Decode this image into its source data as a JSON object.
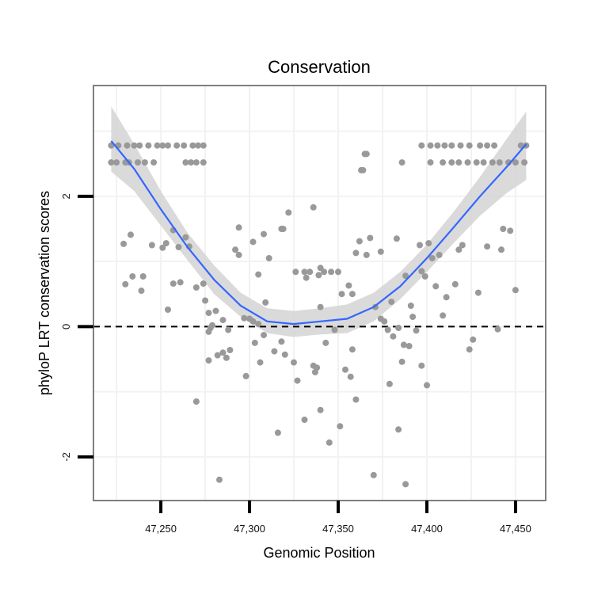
{
  "chart_data": {
    "type": "scatter",
    "title": "Conservation",
    "xlabel": "Genomic Position",
    "ylabel": "phyloP LRT conservation scores",
    "xlim": [
      47212,
      47467
    ],
    "ylim": [
      -2.67,
      3.7
    ],
    "x_ticks": [
      47250,
      47300,
      47350,
      47400,
      47450
    ],
    "x_tick_labels": [
      "47,250",
      "47,300",
      "47,350",
      "47,400",
      "47,450"
    ],
    "y_ticks": [
      -2,
      0,
      2
    ],
    "y_tick_labels": [
      "-2",
      "0",
      "2"
    ],
    "grid": true,
    "reference_line": {
      "y": 0,
      "style": "dashed"
    },
    "colors": {
      "points": "#999999",
      "smooth": "#3366ff",
      "band": "#d3d3d3",
      "frame": "#7f7f7f",
      "grid": "#f2f2f2"
    },
    "points": [
      {
        "x": 47222,
        "y": 2.78
      },
      {
        "x": 47226,
        "y": 2.78
      },
      {
        "x": 47231,
        "y": 2.78
      },
      {
        "x": 47235,
        "y": 2.78
      },
      {
        "x": 47238,
        "y": 2.78
      },
      {
        "x": 47243,
        "y": 2.78
      },
      {
        "x": 47248,
        "y": 2.78
      },
      {
        "x": 47251,
        "y": 2.78
      },
      {
        "x": 47254,
        "y": 2.78
      },
      {
        "x": 47259,
        "y": 2.78
      },
      {
        "x": 47263,
        "y": 2.78
      },
      {
        "x": 47268,
        "y": 2.78
      },
      {
        "x": 47271,
        "y": 2.78
      },
      {
        "x": 47274,
        "y": 2.78
      },
      {
        "x": 47222,
        "y": 2.52
      },
      {
        "x": 47225,
        "y": 2.52
      },
      {
        "x": 47230,
        "y": 2.52
      },
      {
        "x": 47232,
        "y": 2.52
      },
      {
        "x": 47237,
        "y": 2.52
      },
      {
        "x": 47241,
        "y": 2.52
      },
      {
        "x": 47246,
        "y": 2.52
      },
      {
        "x": 47264,
        "y": 2.52
      },
      {
        "x": 47267,
        "y": 2.52
      },
      {
        "x": 47270,
        "y": 2.52
      },
      {
        "x": 47274,
        "y": 2.52
      },
      {
        "x": 47397,
        "y": 2.78
      },
      {
        "x": 47402,
        "y": 2.78
      },
      {
        "x": 47406,
        "y": 2.78
      },
      {
        "x": 47410,
        "y": 2.78
      },
      {
        "x": 47414,
        "y": 2.78
      },
      {
        "x": 47419,
        "y": 2.78
      },
      {
        "x": 47424,
        "y": 2.78
      },
      {
        "x": 47430,
        "y": 2.78
      },
      {
        "x": 47434,
        "y": 2.78
      },
      {
        "x": 47438,
        "y": 2.78
      },
      {
        "x": 47453,
        "y": 2.78
      },
      {
        "x": 47456,
        "y": 2.78
      },
      {
        "x": 47386,
        "y": 2.52
      },
      {
        "x": 47402,
        "y": 2.52
      },
      {
        "x": 47409,
        "y": 2.52
      },
      {
        "x": 47414,
        "y": 2.52
      },
      {
        "x": 47418,
        "y": 2.52
      },
      {
        "x": 47423,
        "y": 2.52
      },
      {
        "x": 47428,
        "y": 2.52
      },
      {
        "x": 47432,
        "y": 2.52
      },
      {
        "x": 47437,
        "y": 2.52
      },
      {
        "x": 47441,
        "y": 2.52
      },
      {
        "x": 47446,
        "y": 2.52
      },
      {
        "x": 47450,
        "y": 2.52
      },
      {
        "x": 47455,
        "y": 2.52
      },
      {
        "x": 47365,
        "y": 2.65
      },
      {
        "x": 47366,
        "y": 2.65
      },
      {
        "x": 47363,
        "y": 2.4
      },
      {
        "x": 47364,
        "y": 2.4
      },
      {
        "x": 47336,
        "y": 1.83
      },
      {
        "x": 47322,
        "y": 1.75
      },
      {
        "x": 47318,
        "y": 1.5
      },
      {
        "x": 47319,
        "y": 1.5
      },
      {
        "x": 47294,
        "y": 1.52
      },
      {
        "x": 47308,
        "y": 1.42
      },
      {
        "x": 47302,
        "y": 1.3
      },
      {
        "x": 47292,
        "y": 1.18
      },
      {
        "x": 47294,
        "y": 1.1
      },
      {
        "x": 47311,
        "y": 1.05
      },
      {
        "x": 47305,
        "y": 0.8
      },
      {
        "x": 47229,
        "y": 1.27
      },
      {
        "x": 47233,
        "y": 1.41
      },
      {
        "x": 47245,
        "y": 1.25
      },
      {
        "x": 47251,
        "y": 1.21
      },
      {
        "x": 47253,
        "y": 1.28
      },
      {
        "x": 47257,
        "y": 1.48
      },
      {
        "x": 47260,
        "y": 1.22
      },
      {
        "x": 47264,
        "y": 1.37
      },
      {
        "x": 47266,
        "y": 1.23
      },
      {
        "x": 47230,
        "y": 0.65
      },
      {
        "x": 47234,
        "y": 0.77
      },
      {
        "x": 47240,
        "y": 0.77
      },
      {
        "x": 47239,
        "y": 0.55
      },
      {
        "x": 47257,
        "y": 0.66
      },
      {
        "x": 47261,
        "y": 0.68
      },
      {
        "x": 47270,
        "y": 0.6
      },
      {
        "x": 47274,
        "y": 0.66
      },
      {
        "x": 47254,
        "y": 0.26
      },
      {
        "x": 47275,
        "y": 0.4
      },
      {
        "x": 47270,
        "y": -1.15
      },
      {
        "x": 47277,
        "y": 0.21
      },
      {
        "x": 47281,
        "y": 0.24
      },
      {
        "x": 47278,
        "y": -0.02
      },
      {
        "x": 47279,
        "y": 0.02
      },
      {
        "x": 47277,
        "y": -0.08
      },
      {
        "x": 47285,
        "y": 0.1
      },
      {
        "x": 47288,
        "y": -0.05
      },
      {
        "x": 47289,
        "y": -0.36
      },
      {
        "x": 47282,
        "y": -0.44
      },
      {
        "x": 47277,
        "y": -0.52
      },
      {
        "x": 47287,
        "y": -0.48
      },
      {
        "x": 47285,
        "y": -0.4
      },
      {
        "x": 47297,
        "y": 0.13
      },
      {
        "x": 47300,
        "y": 0.12
      },
      {
        "x": 47302,
        "y": 0.08
      },
      {
        "x": 47305,
        "y": 0.04
      },
      {
        "x": 47303,
        "y": -0.25
      },
      {
        "x": 47308,
        "y": -0.13
      },
      {
        "x": 47309,
        "y": 0.37
      },
      {
        "x": 47314,
        "y": -0.38
      },
      {
        "x": 47306,
        "y": -0.55
      },
      {
        "x": 47318,
        "y": -0.23
      },
      {
        "x": 47320,
        "y": -0.43
      },
      {
        "x": 47325,
        "y": -0.55
      },
      {
        "x": 47327,
        "y": -0.83
      },
      {
        "x": 47298,
        "y": -0.76
      },
      {
        "x": 47316,
        "y": -1.63
      },
      {
        "x": 47283,
        "y": -2.35
      },
      {
        "x": 47326,
        "y": 0.84
      },
      {
        "x": 47331,
        "y": 0.84
      },
      {
        "x": 47334,
        "y": 0.84
      },
      {
        "x": 47340,
        "y": 0.9
      },
      {
        "x": 47346,
        "y": 0.84
      },
      {
        "x": 47350,
        "y": 0.84
      },
      {
        "x": 47342,
        "y": 0.84
      },
      {
        "x": 47339,
        "y": 0.79
      },
      {
        "x": 47332,
        "y": 0.75
      },
      {
        "x": 47340,
        "y": 0.3
      },
      {
        "x": 47338,
        "y": -0.63
      },
      {
        "x": 47336,
        "y": -0.6
      },
      {
        "x": 47343,
        "y": -0.25
      },
      {
        "x": 47348,
        "y": -0.05
      },
      {
        "x": 47337,
        "y": -0.7
      },
      {
        "x": 47352,
        "y": 0.5
      },
      {
        "x": 47356,
        "y": 0.63
      },
      {
        "x": 47358,
        "y": 0.5
      },
      {
        "x": 47360,
        "y": 1.13
      },
      {
        "x": 47362,
        "y": 1.31
      },
      {
        "x": 47366,
        "y": 1.1
      },
      {
        "x": 47368,
        "y": 1.36
      },
      {
        "x": 47374,
        "y": 1.15
      },
      {
        "x": 47380,
        "y": 0.38
      },
      {
        "x": 47371,
        "y": 0.3
      },
      {
        "x": 47374,
        "y": 0.12
      },
      {
        "x": 47376,
        "y": 0.08
      },
      {
        "x": 47358,
        "y": -0.35
      },
      {
        "x": 47354,
        "y": -0.66
      },
      {
        "x": 47357,
        "y": -0.77
      },
      {
        "x": 47360,
        "y": -1.12
      },
      {
        "x": 47351,
        "y": -1.53
      },
      {
        "x": 47345,
        "y": -1.78
      },
      {
        "x": 47340,
        "y": -1.28
      },
      {
        "x": 47331,
        "y": -1.43
      },
      {
        "x": 47378,
        "y": -0.05
      },
      {
        "x": 47381,
        "y": -0.15
      },
      {
        "x": 47384,
        "y": -0.02
      },
      {
        "x": 47387,
        "y": -0.28
      },
      {
        "x": 47390,
        "y": -0.3
      },
      {
        "x": 47392,
        "y": 0.15
      },
      {
        "x": 47386,
        "y": -0.54
      },
      {
        "x": 47379,
        "y": -0.88
      },
      {
        "x": 47384,
        "y": -1.58
      },
      {
        "x": 47370,
        "y": -2.28
      },
      {
        "x": 47388,
        "y": -2.42
      },
      {
        "x": 47383,
        "y": 1.35
      },
      {
        "x": 47388,
        "y": 0.78
      },
      {
        "x": 47391,
        "y": 0.32
      },
      {
        "x": 47394,
        "y": -0.06
      },
      {
        "x": 47397,
        "y": -0.6
      },
      {
        "x": 47400,
        "y": -0.9
      },
      {
        "x": 47396,
        "y": 1.25
      },
      {
        "x": 47399,
        "y": 0.77
      },
      {
        "x": 47401,
        "y": 1.28
      },
      {
        "x": 47405,
        "y": 0.62
      },
      {
        "x": 47409,
        "y": 0.17
      },
      {
        "x": 47411,
        "y": 0.45
      },
      {
        "x": 47416,
        "y": 0.65
      },
      {
        "x": 47418,
        "y": 1.18
      },
      {
        "x": 47420,
        "y": 1.25
      },
      {
        "x": 47424,
        "y": -0.35
      },
      {
        "x": 47426,
        "y": -0.2
      },
      {
        "x": 47429,
        "y": 0.52
      },
      {
        "x": 47434,
        "y": 1.23
      },
      {
        "x": 47440,
        "y": -0.04
      },
      {
        "x": 47442,
        "y": 1.18
      },
      {
        "x": 47443,
        "y": 1.5
      },
      {
        "x": 47447,
        "y": 1.47
      },
      {
        "x": 47450,
        "y": 0.56
      },
      {
        "x": 47403,
        "y": 1.05
      },
      {
        "x": 47407,
        "y": 1.1
      },
      {
        "x": 47397,
        "y": 0.85
      }
    ],
    "smooth_line": {
      "x": [
        47222,
        47235,
        47250,
        47265,
        47280,
        47295,
        47310,
        47325,
        47340,
        47355,
        47370,
        47385,
        47400,
        47415,
        47430,
        47445,
        47456
      ],
      "y": [
        2.85,
        2.42,
        1.8,
        1.22,
        0.72,
        0.32,
        0.08,
        0.04,
        0.08,
        0.12,
        0.3,
        0.62,
        1.05,
        1.52,
        2.0,
        2.45,
        2.8
      ],
      "lower": [
        2.38,
        2.08,
        1.55,
        1.02,
        0.5,
        0.15,
        -0.1,
        -0.16,
        -0.12,
        -0.1,
        0.08,
        0.42,
        0.84,
        1.28,
        1.7,
        2.05,
        2.25
      ],
      "upper": [
        3.38,
        2.8,
        2.08,
        1.44,
        0.94,
        0.52,
        0.28,
        0.24,
        0.28,
        0.34,
        0.52,
        0.84,
        1.26,
        1.76,
        2.3,
        2.88,
        3.3
      ]
    }
  }
}
